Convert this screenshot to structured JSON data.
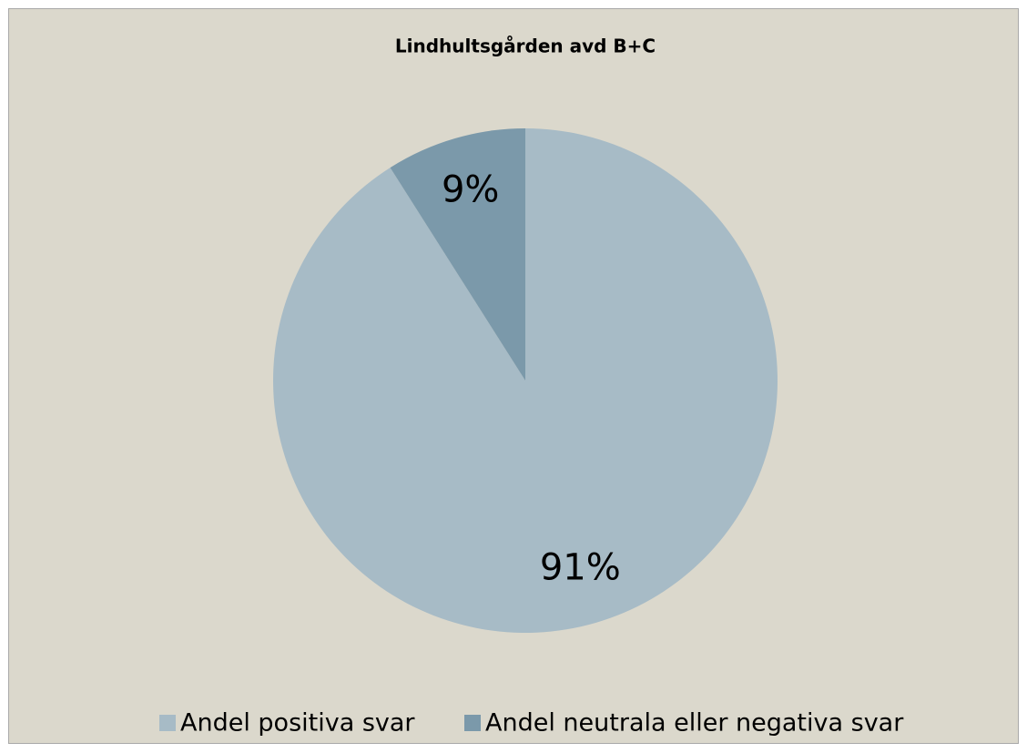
{
  "chart_data": {
    "type": "pie",
    "title": "Lindhultsgården avd B+C",
    "categories": [
      "Andel positiva svar",
      "Andel neutrala eller negativa svar"
    ],
    "values": [
      91,
      9
    ],
    "value_labels": [
      "91%",
      "9%"
    ],
    "colors": [
      "#a7bbc6",
      "#7b99aa"
    ],
    "legend": "bottom"
  }
}
